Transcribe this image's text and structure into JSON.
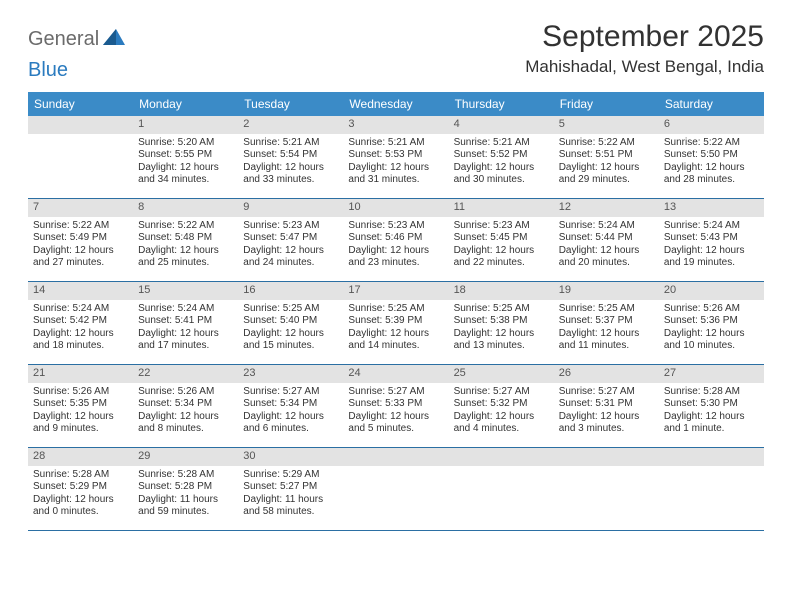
{
  "logo": {
    "text1": "General",
    "text2": "Blue"
  },
  "title": "September 2025",
  "location": "Mahishadal, West Bengal, India",
  "colors": {
    "header_bg": "#3b8bc7",
    "border": "#2b6fa3",
    "daynum_bg": "#e3e3e3",
    "text": "#333333",
    "logo_gray": "#6b6b6b",
    "logo_blue": "#2b7bbf"
  },
  "day_names": [
    "Sunday",
    "Monday",
    "Tuesday",
    "Wednesday",
    "Thursday",
    "Friday",
    "Saturday"
  ],
  "weeks": [
    [
      null,
      {
        "n": "1",
        "sr": "Sunrise: 5:20 AM",
        "ss": "Sunset: 5:55 PM",
        "dl": "Daylight: 12 hours and 34 minutes."
      },
      {
        "n": "2",
        "sr": "Sunrise: 5:21 AM",
        "ss": "Sunset: 5:54 PM",
        "dl": "Daylight: 12 hours and 33 minutes."
      },
      {
        "n": "3",
        "sr": "Sunrise: 5:21 AM",
        "ss": "Sunset: 5:53 PM",
        "dl": "Daylight: 12 hours and 31 minutes."
      },
      {
        "n": "4",
        "sr": "Sunrise: 5:21 AM",
        "ss": "Sunset: 5:52 PM",
        "dl": "Daylight: 12 hours and 30 minutes."
      },
      {
        "n": "5",
        "sr": "Sunrise: 5:22 AM",
        "ss": "Sunset: 5:51 PM",
        "dl": "Daylight: 12 hours and 29 minutes."
      },
      {
        "n": "6",
        "sr": "Sunrise: 5:22 AM",
        "ss": "Sunset: 5:50 PM",
        "dl": "Daylight: 12 hours and 28 minutes."
      }
    ],
    [
      {
        "n": "7",
        "sr": "Sunrise: 5:22 AM",
        "ss": "Sunset: 5:49 PM",
        "dl": "Daylight: 12 hours and 27 minutes."
      },
      {
        "n": "8",
        "sr": "Sunrise: 5:22 AM",
        "ss": "Sunset: 5:48 PM",
        "dl": "Daylight: 12 hours and 25 minutes."
      },
      {
        "n": "9",
        "sr": "Sunrise: 5:23 AM",
        "ss": "Sunset: 5:47 PM",
        "dl": "Daylight: 12 hours and 24 minutes."
      },
      {
        "n": "10",
        "sr": "Sunrise: 5:23 AM",
        "ss": "Sunset: 5:46 PM",
        "dl": "Daylight: 12 hours and 23 minutes."
      },
      {
        "n": "11",
        "sr": "Sunrise: 5:23 AM",
        "ss": "Sunset: 5:45 PM",
        "dl": "Daylight: 12 hours and 22 minutes."
      },
      {
        "n": "12",
        "sr": "Sunrise: 5:24 AM",
        "ss": "Sunset: 5:44 PM",
        "dl": "Daylight: 12 hours and 20 minutes."
      },
      {
        "n": "13",
        "sr": "Sunrise: 5:24 AM",
        "ss": "Sunset: 5:43 PM",
        "dl": "Daylight: 12 hours and 19 minutes."
      }
    ],
    [
      {
        "n": "14",
        "sr": "Sunrise: 5:24 AM",
        "ss": "Sunset: 5:42 PM",
        "dl": "Daylight: 12 hours and 18 minutes."
      },
      {
        "n": "15",
        "sr": "Sunrise: 5:24 AM",
        "ss": "Sunset: 5:41 PM",
        "dl": "Daylight: 12 hours and 17 minutes."
      },
      {
        "n": "16",
        "sr": "Sunrise: 5:25 AM",
        "ss": "Sunset: 5:40 PM",
        "dl": "Daylight: 12 hours and 15 minutes."
      },
      {
        "n": "17",
        "sr": "Sunrise: 5:25 AM",
        "ss": "Sunset: 5:39 PM",
        "dl": "Daylight: 12 hours and 14 minutes."
      },
      {
        "n": "18",
        "sr": "Sunrise: 5:25 AM",
        "ss": "Sunset: 5:38 PM",
        "dl": "Daylight: 12 hours and 13 minutes."
      },
      {
        "n": "19",
        "sr": "Sunrise: 5:25 AM",
        "ss": "Sunset: 5:37 PM",
        "dl": "Daylight: 12 hours and 11 minutes."
      },
      {
        "n": "20",
        "sr": "Sunrise: 5:26 AM",
        "ss": "Sunset: 5:36 PM",
        "dl": "Daylight: 12 hours and 10 minutes."
      }
    ],
    [
      {
        "n": "21",
        "sr": "Sunrise: 5:26 AM",
        "ss": "Sunset: 5:35 PM",
        "dl": "Daylight: 12 hours and 9 minutes."
      },
      {
        "n": "22",
        "sr": "Sunrise: 5:26 AM",
        "ss": "Sunset: 5:34 PM",
        "dl": "Daylight: 12 hours and 8 minutes."
      },
      {
        "n": "23",
        "sr": "Sunrise: 5:27 AM",
        "ss": "Sunset: 5:34 PM",
        "dl": "Daylight: 12 hours and 6 minutes."
      },
      {
        "n": "24",
        "sr": "Sunrise: 5:27 AM",
        "ss": "Sunset: 5:33 PM",
        "dl": "Daylight: 12 hours and 5 minutes."
      },
      {
        "n": "25",
        "sr": "Sunrise: 5:27 AM",
        "ss": "Sunset: 5:32 PM",
        "dl": "Daylight: 12 hours and 4 minutes."
      },
      {
        "n": "26",
        "sr": "Sunrise: 5:27 AM",
        "ss": "Sunset: 5:31 PM",
        "dl": "Daylight: 12 hours and 3 minutes."
      },
      {
        "n": "27",
        "sr": "Sunrise: 5:28 AM",
        "ss": "Sunset: 5:30 PM",
        "dl": "Daylight: 12 hours and 1 minute."
      }
    ],
    [
      {
        "n": "28",
        "sr": "Sunrise: 5:28 AM",
        "ss": "Sunset: 5:29 PM",
        "dl": "Daylight: 12 hours and 0 minutes."
      },
      {
        "n": "29",
        "sr": "Sunrise: 5:28 AM",
        "ss": "Sunset: 5:28 PM",
        "dl": "Daylight: 11 hours and 59 minutes."
      },
      {
        "n": "30",
        "sr": "Sunrise: 5:29 AM",
        "ss": "Sunset: 5:27 PM",
        "dl": "Daylight: 11 hours and 58 minutes."
      },
      null,
      null,
      null,
      null
    ]
  ]
}
